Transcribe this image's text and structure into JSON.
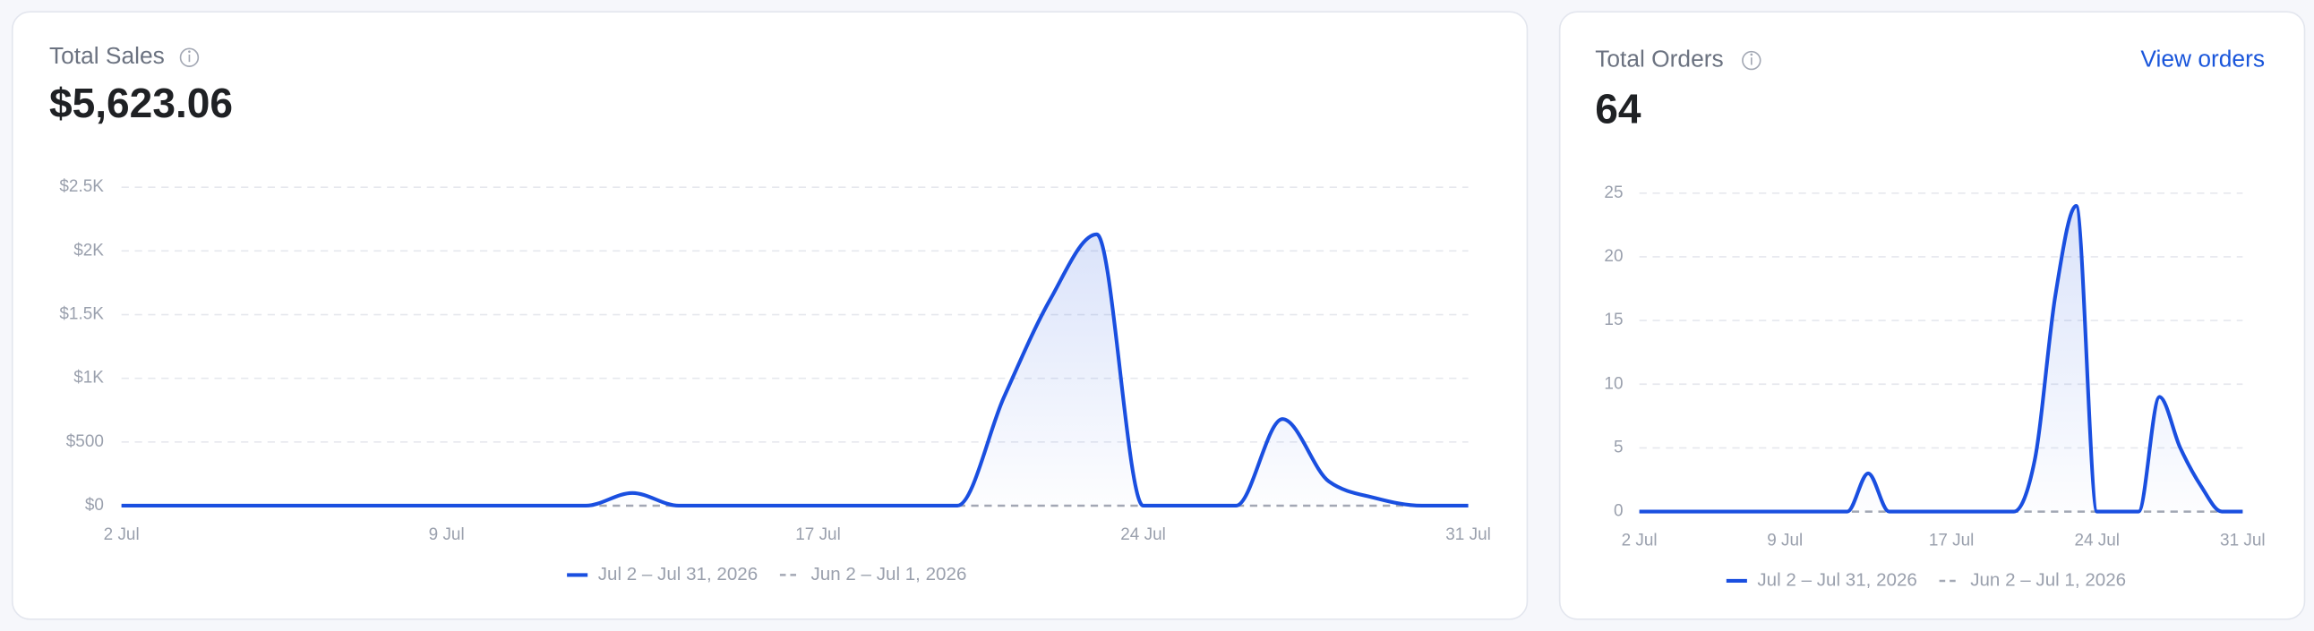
{
  "cards": [
    {
      "title": "Total Sales",
      "total": "$5,623.06"
    },
    {
      "title": "Total Orders",
      "total": "64",
      "link": "View orders"
    }
  ],
  "chart_data": [
    {
      "type": "line",
      "categories": [
        "2 Jul",
        null,
        null,
        null,
        null,
        null,
        null,
        "9 Jul",
        null,
        null,
        null,
        null,
        null,
        null,
        null,
        "17 Jul",
        null,
        null,
        null,
        null,
        null,
        null,
        "24 Jul",
        null,
        null,
        null,
        null,
        null,
        null,
        "31 Jul"
      ],
      "series": [
        {
          "name": "Jul 2 – Jul 31, 2026",
          "color": "#1a4fe0",
          "values": [
            0,
            0,
            0,
            0,
            0,
            0,
            0,
            0,
            0,
            0,
            0,
            100,
            0,
            0,
            0,
            0,
            0,
            0,
            0,
            850,
            1620,
            2130,
            0,
            0,
            0,
            680,
            190,
            60,
            0,
            0
          ]
        },
        {
          "name": "Jun 2 – Jul 1, 2026",
          "color": "#a3a8b4",
          "values": [
            0,
            0,
            0,
            0,
            0,
            0,
            0,
            0,
            0,
            0,
            0,
            0,
            0,
            0,
            0,
            0,
            0,
            0,
            0,
            0,
            0,
            0,
            0,
            0,
            0,
            0,
            0,
            0,
            0,
            0
          ]
        }
      ],
      "ylim": [
        0,
        2500
      ],
      "yticks": [
        {
          "value": 0,
          "label": "$0"
        },
        {
          "value": 500,
          "label": "$500"
        },
        {
          "value": 1000,
          "label": "$1K"
        },
        {
          "value": 1500,
          "label": "$1.5K"
        },
        {
          "value": 2000,
          "label": "$2K"
        },
        {
          "value": 2500,
          "label": "$2.5K"
        }
      ],
      "grid": true
    },
    {
      "type": "line",
      "categories": [
        "2 Jul",
        null,
        null,
        null,
        null,
        null,
        null,
        "9 Jul",
        null,
        null,
        null,
        null,
        null,
        null,
        null,
        "17 Jul",
        null,
        null,
        null,
        null,
        null,
        null,
        "24 Jul",
        null,
        null,
        null,
        null,
        null,
        null,
        "31 Jul"
      ],
      "series": [
        {
          "name": "Jul 2 – Jul 31, 2026",
          "color": "#1a4fe0",
          "values": [
            0,
            0,
            0,
            0,
            0,
            0,
            0,
            0,
            0,
            0,
            0,
            3,
            0,
            0,
            0,
            0,
            0,
            0,
            0,
            4,
            17,
            24,
            0,
            0,
            0,
            9,
            5,
            2,
            0,
            0
          ]
        },
        {
          "name": "Jun 2 – Jul 1, 2026",
          "color": "#a3a8b4",
          "values": [
            0,
            0,
            0,
            0,
            0,
            0,
            0,
            0,
            0,
            0,
            0,
            0,
            0,
            0,
            0,
            0,
            0,
            0,
            0,
            0,
            0,
            0,
            0,
            0,
            0,
            0,
            0,
            0,
            0,
            0
          ]
        }
      ],
      "ylim": [
        0,
        25
      ],
      "yticks": [
        0,
        5,
        10,
        15,
        20,
        25
      ],
      "grid": true
    }
  ]
}
